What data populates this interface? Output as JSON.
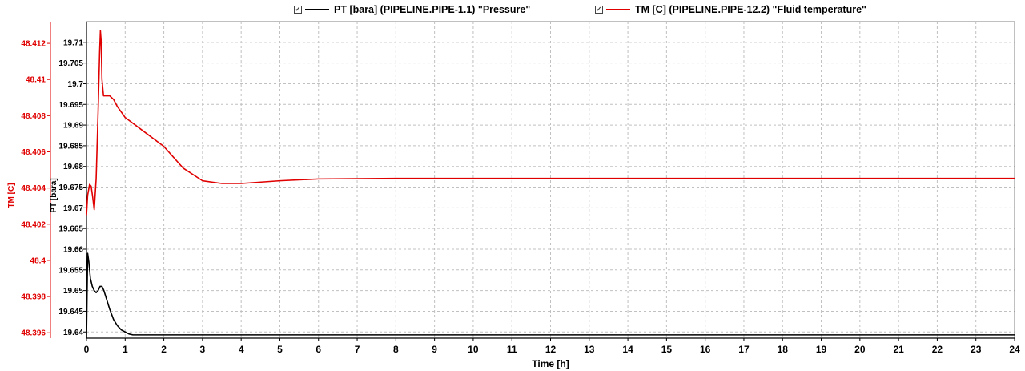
{
  "legend": {
    "pt_label": "PT [bara] (PIPELINE.PIPE-1.1) \"Pressure\"",
    "tm_label": "TM [C] (PIPELINE.PIPE-12.2) \"Fluid temperature\"",
    "checked": true
  },
  "chart_data": {
    "type": "line",
    "xlabel": "Time [h]",
    "xlim": [
      0,
      24
    ],
    "xticks": [
      0,
      1,
      2,
      3,
      4,
      5,
      6,
      7,
      8,
      9,
      10,
      11,
      12,
      13,
      14,
      15,
      16,
      17,
      18,
      19,
      20,
      21,
      22,
      23,
      24
    ],
    "grid": true,
    "axes": {
      "pt": {
        "label": "PT [bara]",
        "color": "#000000",
        "ylim": [
          19.6385,
          19.715
        ],
        "ticks": [
          "19.64",
          "19.645",
          "19.65",
          "19.655",
          "19.66",
          "19.665",
          "19.67",
          "19.675",
          "19.68",
          "19.685",
          "19.69",
          "19.695",
          "19.7",
          "19.705",
          "19.71"
        ]
      },
      "tm": {
        "label": "TM [C]",
        "color": "#e00000",
        "ylim": [
          48.3957,
          48.4132
        ],
        "ticks": [
          "48.396",
          "48.398",
          "48.4",
          "48.402",
          "48.404",
          "48.406",
          "48.408",
          "48.41",
          "48.412"
        ]
      }
    },
    "series": [
      {
        "name": "PT [bara] (PIPELINE.PIPE-1.1) \"Pressure\"",
        "axis": "pt",
        "color": "#000000",
        "x": [
          0,
          0.03,
          0.06,
          0.1,
          0.15,
          0.2,
          0.25,
          0.3,
          0.35,
          0.4,
          0.45,
          0.5,
          0.6,
          0.7,
          0.8,
          0.9,
          1.0,
          1.1,
          1.2,
          1.5,
          2,
          24
        ],
        "y": [
          19.6385,
          19.659,
          19.657,
          19.653,
          19.651,
          19.65,
          19.6495,
          19.65,
          19.651,
          19.651,
          19.65,
          19.6485,
          19.6455,
          19.643,
          19.6415,
          19.6405,
          19.64,
          19.6395,
          19.6393,
          19.6393,
          19.6393,
          19.6393
        ]
      },
      {
        "name": "TM [C] (PIPELINE.PIPE-12.2) \"Fluid temperature\"",
        "axis": "tm",
        "color": "#e00000",
        "x": [
          0,
          0.03,
          0.08,
          0.12,
          0.16,
          0.2,
          0.25,
          0.3,
          0.34,
          0.36,
          0.38,
          0.4,
          0.44,
          0.5,
          0.6,
          0.7,
          0.8,
          1.0,
          1.5,
          2,
          2.5,
          3,
          3.5,
          4,
          5,
          6,
          8,
          10,
          12,
          16,
          20,
          24
        ],
        "y": [
          48.4025,
          48.4036,
          48.4042,
          48.4041,
          48.4035,
          48.4028,
          48.4045,
          48.4082,
          48.4115,
          48.4127,
          48.4121,
          48.41,
          48.4091,
          48.4091,
          48.4091,
          48.4089,
          48.4085,
          48.4079,
          48.4071,
          48.4063,
          48.4051,
          48.4044,
          48.40425,
          48.40425,
          48.4044,
          48.4045,
          48.40453,
          48.40453,
          48.40453,
          48.40453,
          48.40453,
          48.40453
        ]
      }
    ]
  }
}
